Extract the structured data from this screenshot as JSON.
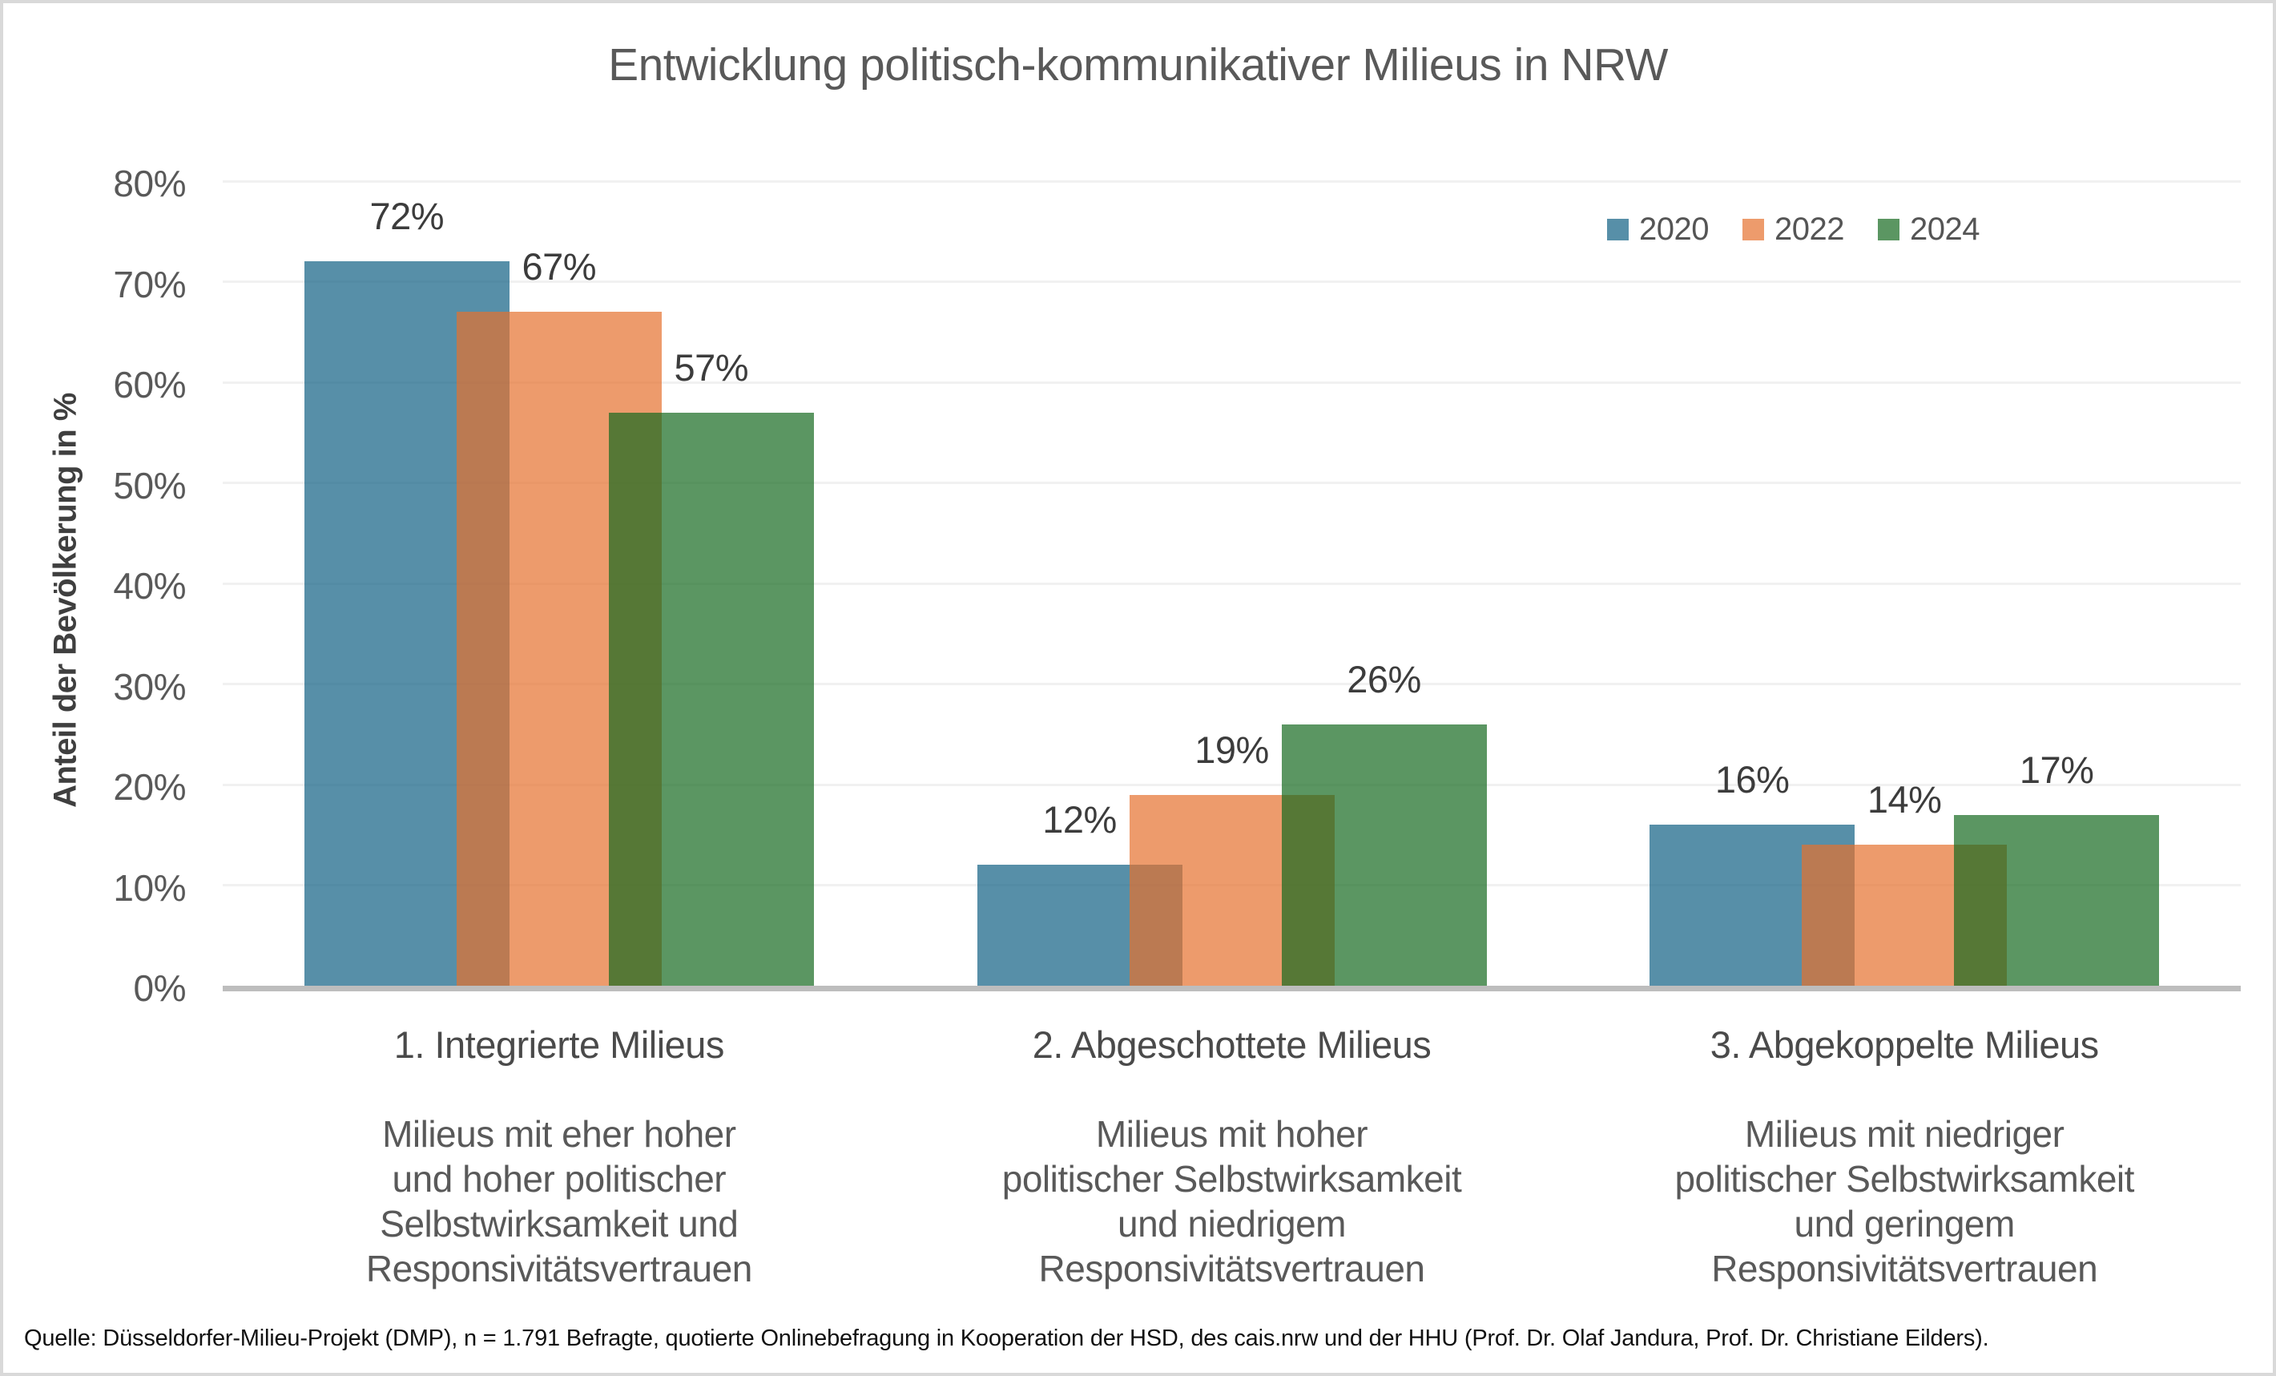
{
  "page": {
    "background": "#FFFFFF",
    "border_color": "#D9D9D9"
  },
  "title": "Entwicklung politisch-kommunikativer Milieus in NRW",
  "source_note": "Quelle: Düsseldorfer-Milieu-Projekt (DMP), n = 1.791 Befragte, quotierte Onlinebefragung in Kooperation der HSD, des cais.nrw und der HHU (Prof. Dr. Olaf Jandura, Prof. Dr. Christiane Eilders).",
  "chart_data": {
    "type": "bar",
    "title": "Entwicklung politisch-kommunikativer Milieus in NRW",
    "xlabel": "",
    "ylabel": "Anteil der Bevölkerung in %",
    "ylim": [
      0,
      80
    ],
    "ytick_step": 10,
    "ytick_labels": [
      "0%",
      "10%",
      "20%",
      "30%",
      "40%",
      "50%",
      "60%",
      "70%",
      "80%"
    ],
    "grid": true,
    "gridline_color": "#F1F1F1",
    "axis_line_color": "#BDBDBD",
    "legend_position": "top-right",
    "bar_style": "overlapping bars, ~70% fill opacity, later series drawn on top",
    "value_suffix": "%",
    "categories": [
      {
        "label": "1. Integrierte Milieus",
        "description": "Milieus mit eher hoher\nund hoher politischer\nSelbstwirksamkeit und\nResponsivitätsvertrauen"
      },
      {
        "label": "2. Abgeschottete Milieus",
        "description": "Milieus mit hoher\npolitischer Selbstwirksamkeit\nund niedrigem\nResponsivitätsvertrauen"
      },
      {
        "label": "3. Abgekoppelte Milieus",
        "description": "Milieus mit niedriger\npolitischer Selbstwirksamkeit\nund geringem\nResponsivitätsvertrauen"
      }
    ],
    "series": [
      {
        "name": "2020",
        "color": "#588FA8",
        "fill": "rgba(16,95,131,0.7)",
        "values": [
          72,
          12,
          16
        ]
      },
      {
        "name": "2022",
        "color": "#ED9B6C",
        "fill": "rgba(229,112,45,0.7)",
        "values": [
          67,
          19,
          14
        ]
      },
      {
        "name": "2024",
        "color": "#5B9763",
        "fill": "rgba(21,106,32,0.7)",
        "values": [
          57,
          26,
          17
        ]
      }
    ],
    "text_colors": {
      "title": "#595959",
      "ticks": "#595959",
      "value_labels": "#3C3C3C",
      "category_labels": "#4A4A4A",
      "descriptions": "#595959",
      "source": "#111111"
    }
  }
}
